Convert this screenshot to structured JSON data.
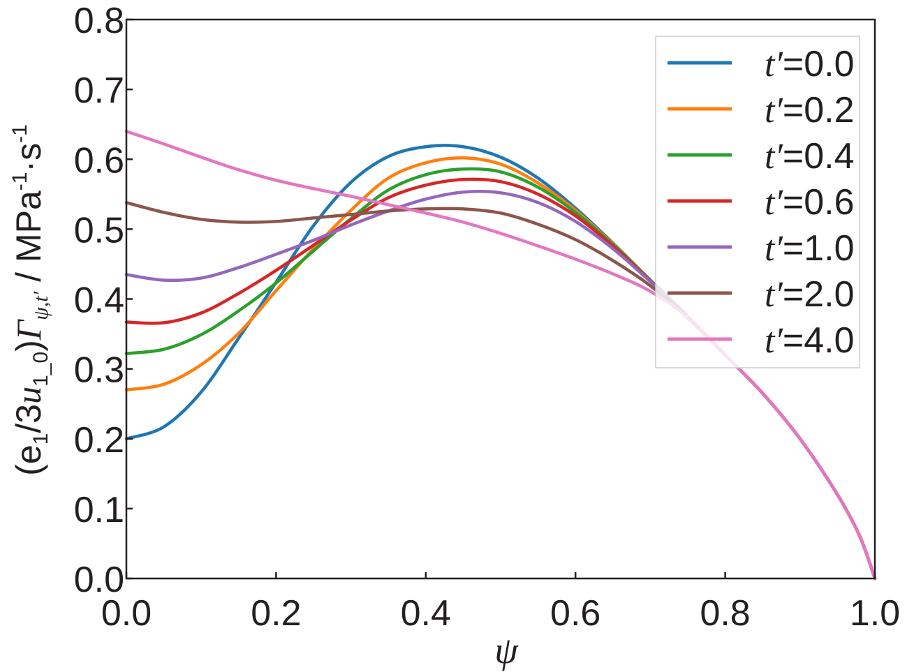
{
  "chart_data": {
    "type": "line",
    "xlabel": "ψ",
    "ylabel": {
      "part1": "(e",
      "sub1": "1",
      "part2": "/3",
      "u": "u",
      "sub2": "1_0",
      "part3": ")",
      "gamma": "Γ",
      "sub3": "ψ,t′",
      "part4": " / MPa",
      "sup1": "-1",
      "part5": "·s",
      "sup2": "-1"
    },
    "xlim": [
      0.0,
      1.0
    ],
    "ylim": [
      0.0,
      0.8
    ],
    "xticks": [
      "0.0",
      "0.2",
      "0.4",
      "0.6",
      "0.8",
      "1.0"
    ],
    "yticks": [
      "0.0",
      "0.1",
      "0.2",
      "0.3",
      "0.4",
      "0.5",
      "0.6",
      "0.7",
      "0.8"
    ],
    "grid": false,
    "legend_position": "top-right",
    "x": [
      0.0,
      0.05,
      0.1,
      0.15,
      0.2,
      0.25,
      0.3,
      0.35,
      0.4,
      0.45,
      0.5,
      0.55,
      0.6,
      0.65,
      0.7,
      0.75,
      0.8,
      0.85,
      0.9,
      0.95,
      0.98,
      1.0
    ],
    "series": [
      {
        "name": "t′=0.0",
        "color": "#1f77b4",
        "values": [
          0.2,
          0.217,
          0.267,
          0.344,
          0.424,
          0.505,
          0.567,
          0.604,
          0.618,
          0.618,
          0.603,
          0.573,
          0.53,
          0.48,
          0.427,
          0.375,
          0.32,
          0.265,
          0.2,
          0.12,
          0.06,
          0.0
        ]
      },
      {
        "name": "t′=0.2",
        "color": "#ff7f0e",
        "values": [
          0.27,
          0.278,
          0.306,
          0.351,
          0.412,
          0.472,
          0.527,
          0.573,
          0.595,
          0.602,
          0.593,
          0.566,
          0.527,
          0.479,
          0.427,
          0.375,
          0.32,
          0.265,
          0.2,
          0.12,
          0.06,
          0.0
        ]
      },
      {
        "name": "t′=0.4",
        "color": "#2ca02c",
        "values": [
          0.322,
          0.328,
          0.349,
          0.383,
          0.423,
          0.469,
          0.515,
          0.556,
          0.578,
          0.586,
          0.582,
          0.56,
          0.524,
          0.478,
          0.427,
          0.375,
          0.32,
          0.265,
          0.2,
          0.12,
          0.06,
          0.0
        ]
      },
      {
        "name": "t′=0.6",
        "color": "#d62728",
        "values": [
          0.367,
          0.366,
          0.38,
          0.408,
          0.441,
          0.477,
          0.513,
          0.545,
          0.563,
          0.571,
          0.568,
          0.55,
          0.519,
          0.476,
          0.426,
          0.375,
          0.32,
          0.265,
          0.2,
          0.12,
          0.06,
          0.0
        ]
      },
      {
        "name": "t′=1.0",
        "color": "#9467bd",
        "values": [
          0.435,
          0.427,
          0.43,
          0.445,
          0.464,
          0.484,
          0.506,
          0.526,
          0.543,
          0.553,
          0.552,
          0.538,
          0.511,
          0.472,
          0.425,
          0.375,
          0.32,
          0.265,
          0.2,
          0.12,
          0.06,
          0.0
        ]
      },
      {
        "name": "t′=2.0",
        "color": "#8c564b",
        "values": [
          0.538,
          0.524,
          0.514,
          0.51,
          0.511,
          0.516,
          0.521,
          0.526,
          0.529,
          0.529,
          0.523,
          0.507,
          0.485,
          0.455,
          0.419,
          0.373,
          0.32,
          0.265,
          0.2,
          0.12,
          0.06,
          0.0
        ]
      },
      {
        "name": "t′=4.0",
        "color": "#e377c2",
        "values": [
          0.64,
          0.622,
          0.603,
          0.585,
          0.57,
          0.558,
          0.547,
          0.535,
          0.523,
          0.51,
          0.494,
          0.476,
          0.457,
          0.436,
          0.411,
          0.374,
          0.32,
          0.265,
          0.2,
          0.12,
          0.06,
          0.0
        ]
      }
    ]
  }
}
